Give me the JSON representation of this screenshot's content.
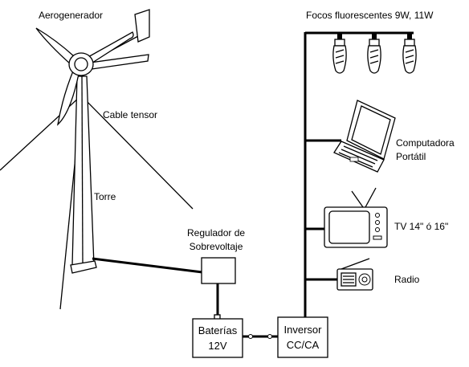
{
  "labels": {
    "wind_turbine": "Aerogenerador",
    "guy_cable": "Cable tensor",
    "tower": "Torre",
    "regulator_line1": "Regulador de",
    "regulator_line2": "Sobrevoltaje",
    "bulbs": "Focos fluorescentes 9W, 11W",
    "laptop_line1": "Computadora",
    "laptop_line2": "Portátil",
    "tv": "TV 14\" ó 16\"",
    "radio": "Radio",
    "batteries_line1": "Baterías",
    "batteries_line2": "12V",
    "inverter_line1": "Inversor",
    "inverter_line2": "CC/CA"
  },
  "icons": [
    "wind-turbine-icon",
    "bulb-icon",
    "laptop-icon",
    "tv-icon",
    "radio-icon"
  ]
}
